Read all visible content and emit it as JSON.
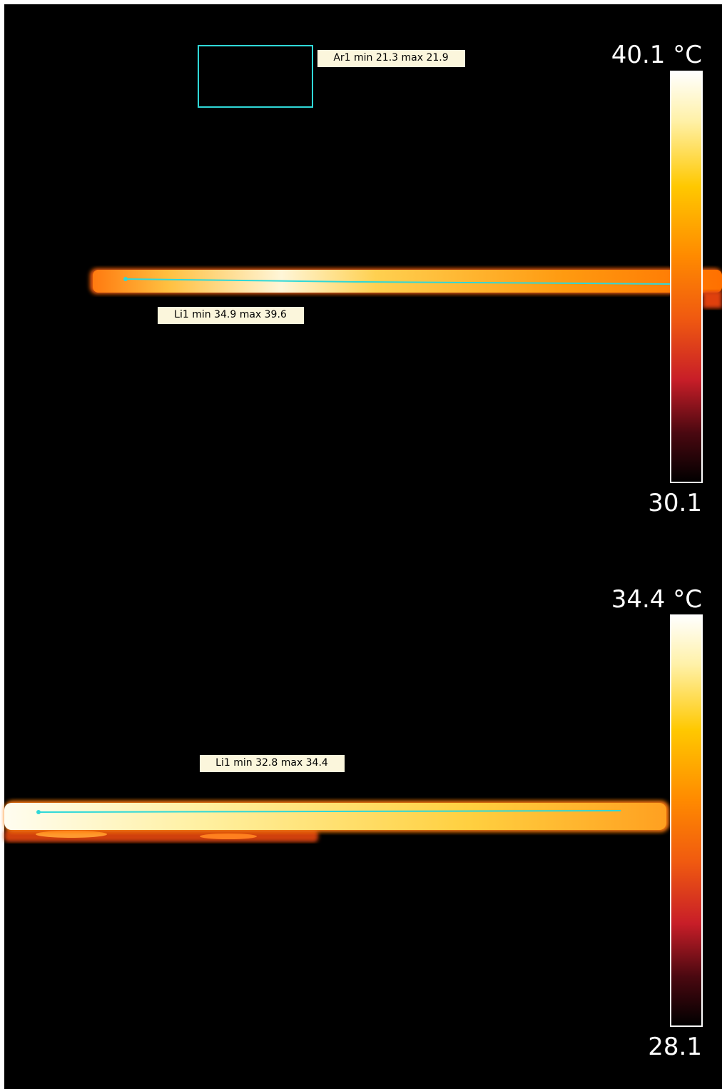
{
  "panels": [
    {
      "scale_max": "40.1 °C",
      "scale_min": "30.1",
      "labels": [
        "Ar1 min 21.3 max 21.9",
        "Li1 min 34.9 max 39.6"
      ]
    },
    {
      "scale_max": "34.4 °C",
      "scale_min": "28.1",
      "labels": [
        "Li1 min 32.8 max 34.4"
      ]
    }
  ]
}
